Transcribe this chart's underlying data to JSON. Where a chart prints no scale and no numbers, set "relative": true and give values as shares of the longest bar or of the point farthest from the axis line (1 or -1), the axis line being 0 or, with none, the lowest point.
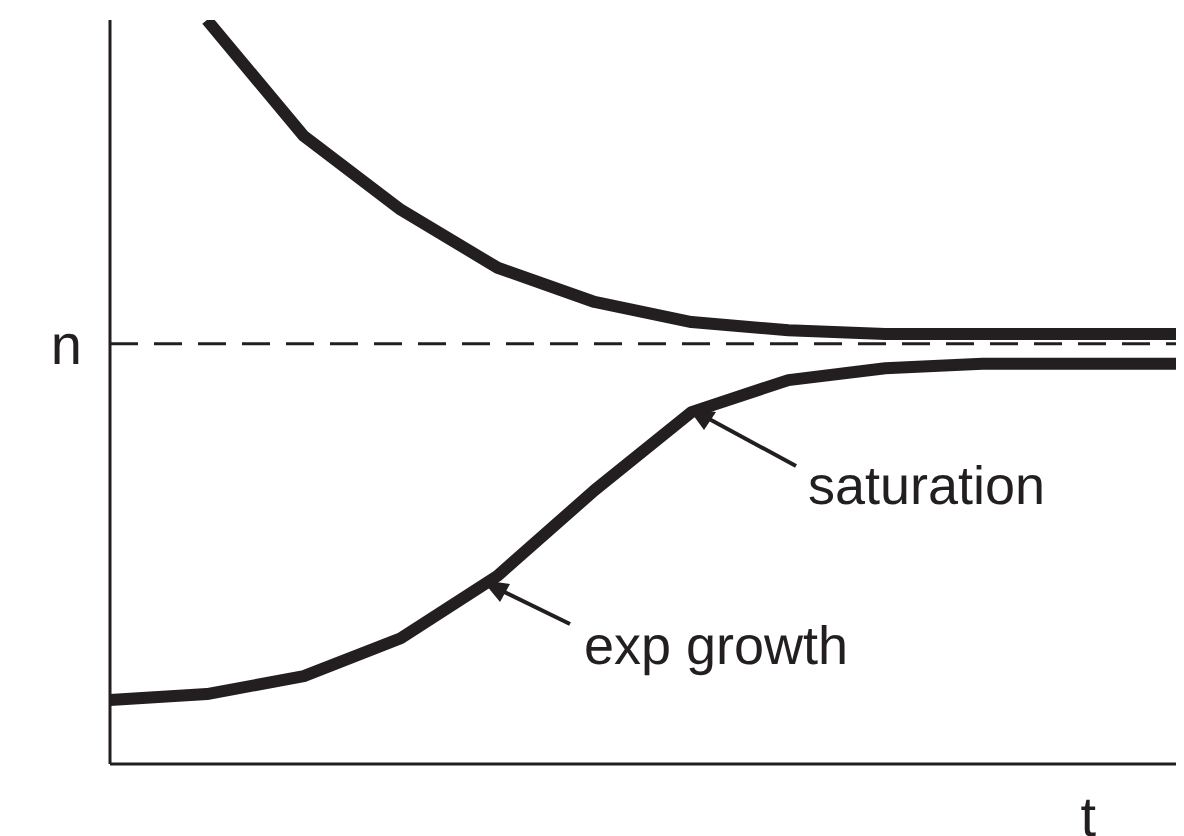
{
  "chart_data": {
    "type": "line",
    "relative": true,
    "xlabel": "t",
    "categories": [
      null,
      null,
      null,
      null,
      null,
      null,
      null,
      null,
      null,
      null,
      null,
      null
    ],
    "series": [
      {
        "color": "#231f20",
        "values": [
          null,
          1.0,
          0.844,
          0.745,
          0.667,
          0.621,
          0.594,
          0.583,
          0.578,
          0.578,
          0.578,
          0.578
        ]
      },
      {
        "color": "#231f20",
        "values": [
          0.086,
          0.094,
          0.118,
          0.169,
          0.253,
          0.368,
          0.473,
          0.516,
          0.532,
          0.538,
          0.538,
          0.538
        ]
      }
    ],
    "ref_lines": [
      {
        "axis": "y",
        "value": 0.565,
        "label": "n",
        "color": "#231f20",
        "line_style": "dashed"
      }
    ],
    "annotations": [
      "saturation",
      "exp growth"
    ],
    "marker": "none",
    "line_style": "solid"
  }
}
